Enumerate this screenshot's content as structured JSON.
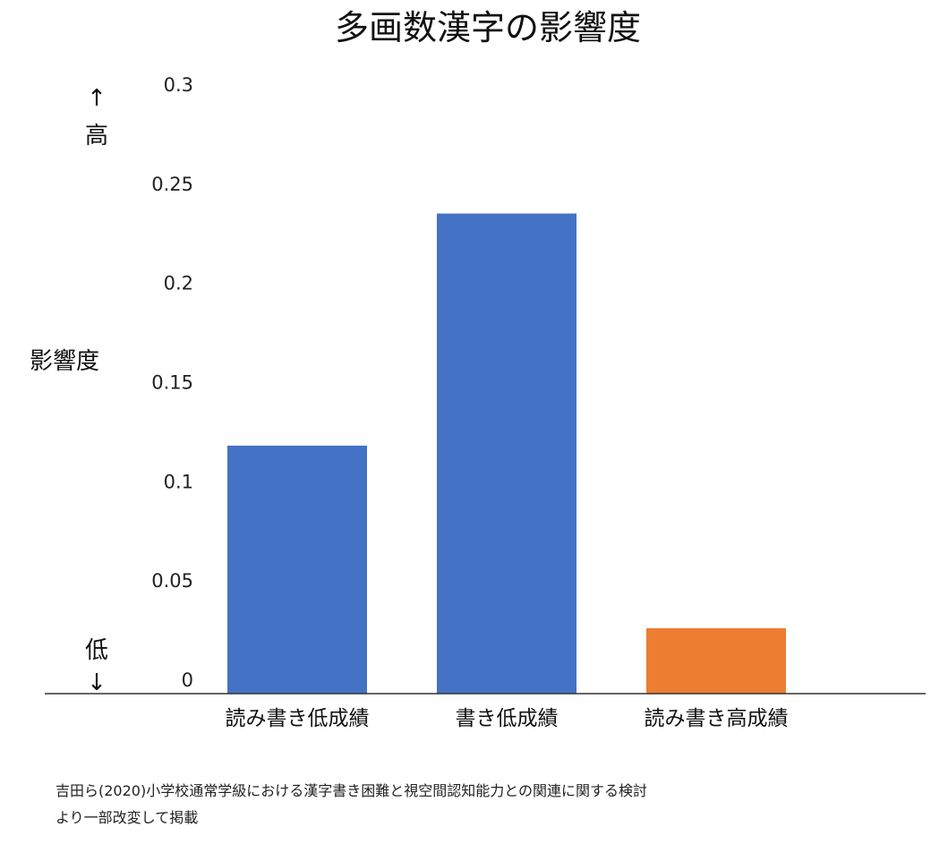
{
  "chart_data": {
    "type": "bar",
    "title": "多画数漢字の影響度",
    "ylabel": "影響度",
    "y_high_label": "高",
    "y_low_label": "低",
    "y_high_arrow": "↑",
    "y_low_arrow": "↓",
    "ylim": [
      0,
      0.3
    ],
    "yticks": [
      {
        "value": 0,
        "label": "0"
      },
      {
        "value": 0.05,
        "label": "0.05"
      },
      {
        "value": 0.1,
        "label": "0.1"
      },
      {
        "value": 0.15,
        "label": "0.15"
      },
      {
        "value": 0.2,
        "label": "0.2"
      },
      {
        "value": 0.25,
        "label": "0.25"
      },
      {
        "value": 0.3,
        "label": "0.3"
      }
    ],
    "categories": [
      "読み書き低成績",
      "書き低成績",
      "読み書き高成績"
    ],
    "values": [
      0.125,
      0.242,
      0.033
    ],
    "bar_colors": [
      "#4472C4",
      "#4472C4",
      "#ED7D31"
    ],
    "grid": false,
    "legend": "none"
  },
  "source": {
    "line1": "吉田ら(2020)小学校通常学級における漢字書き困難と視空間認知能力との関連に関する検討",
    "line2": "より一部改変して掲載"
  }
}
